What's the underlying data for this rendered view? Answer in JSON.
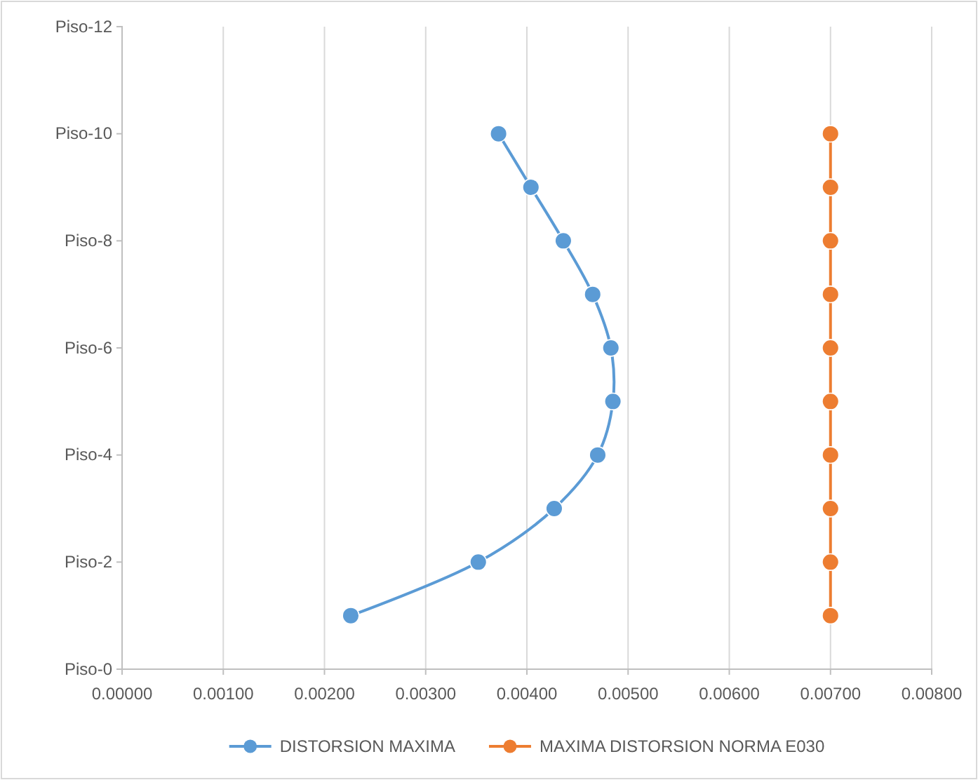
{
  "chart_data": {
    "type": "line",
    "orientation": "horizontal",
    "xlim": [
      0,
      0.008
    ],
    "xticks": [
      {
        "value": 0,
        "label": "0.00000"
      },
      {
        "value": 0.001,
        "label": "0.00100"
      },
      {
        "value": 0.002,
        "label": "0.00200"
      },
      {
        "value": 0.003,
        "label": "0.00300"
      },
      {
        "value": 0.004,
        "label": "0.00400"
      },
      {
        "value": 0.005,
        "label": "0.00500"
      },
      {
        "value": 0.006,
        "label": "0.00600"
      },
      {
        "value": 0.007,
        "label": "0.00700"
      },
      {
        "value": 0.008,
        "label": "0.00800"
      }
    ],
    "categories": [
      "Piso-12",
      null,
      "Piso-10",
      null,
      "Piso-8",
      null,
      "Piso-6",
      null,
      "Piso-4",
      null,
      "Piso-2",
      null,
      "Piso-0"
    ],
    "grid": "x",
    "legend": "bottom",
    "marker": "circle",
    "line_style": "solid",
    "series": [
      {
        "name": "DISTORSION MAXIMA",
        "color": "#5b9bd5",
        "values": [
          null,
          null,
          0.00372,
          0.00404,
          0.00436,
          0.00465,
          0.00483,
          0.00485,
          0.0047,
          0.00427,
          0.00352,
          0.00226,
          null
        ]
      },
      {
        "name": "MAXIMA DISTORSION NORMA E030",
        "color": "#ed7d31",
        "values": [
          null,
          null,
          0.007,
          0.007,
          0.007,
          0.007,
          0.007,
          0.007,
          0.007,
          0.007,
          0.007,
          0.007,
          null
        ]
      }
    ]
  }
}
